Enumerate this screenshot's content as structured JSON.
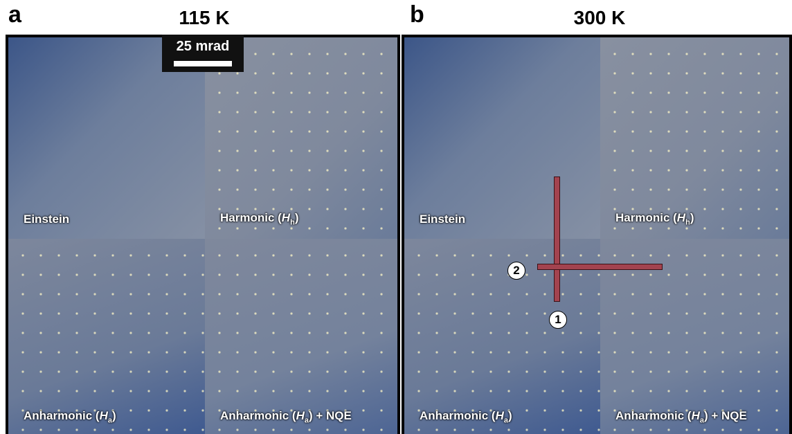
{
  "panels": [
    {
      "letter": "a",
      "title": "115 K",
      "scale_bar": "25 mrad",
      "quadrants": [
        {
          "text": "Einstein"
        },
        {
          "prefix": "Harmonic (",
          "symbol": "H",
          "sub": "h",
          "suffix": ")"
        },
        {
          "prefix": "Anharmonic (",
          "symbol": "H",
          "sub": "a",
          "suffix": ")"
        },
        {
          "prefix": "Anharmonic (",
          "symbol": "H",
          "sub": "a",
          "suffix": ") + NQE"
        }
      ]
    },
    {
      "letter": "b",
      "title": "300 K",
      "quadrants": [
        {
          "text": "Einstein"
        },
        {
          "prefix": "Harmonic (",
          "symbol": "H",
          "sub": "h",
          "suffix": ")"
        },
        {
          "prefix": "Anharmonic (",
          "symbol": "H",
          "sub": "a",
          "suffix": ")"
        },
        {
          "prefix": "Anharmonic (",
          "symbol": "H",
          "sub": "a",
          "suffix": ") + NQE"
        }
      ],
      "markers": [
        "1",
        "2"
      ]
    }
  ]
}
